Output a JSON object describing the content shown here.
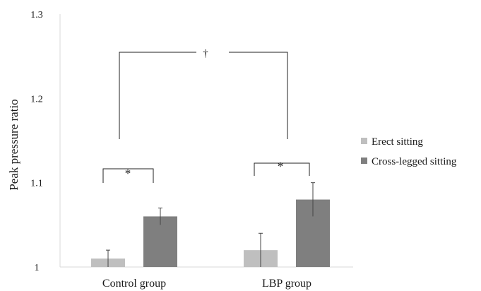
{
  "chart_data": {
    "type": "bar",
    "ylabel": "Peak pressure ratio",
    "ylim": [
      1,
      1.3
    ],
    "yticks": [
      "1",
      "1.1",
      "1.2",
      "1.3"
    ],
    "categories": [
      "Control group",
      "LBP group"
    ],
    "series": [
      {
        "name": "Erect sitting",
        "values": [
          1.01,
          1.02
        ],
        "errors": [
          0.01,
          0.02
        ],
        "color": "#bfbfbf"
      },
      {
        "name": "Cross-legged sitting",
        "values": [
          1.06,
          1.08
        ],
        "errors": [
          0.01,
          0.02
        ],
        "color": "#7f7f7f"
      }
    ],
    "grid": false,
    "legend_position": "right",
    "annotations": [
      {
        "symbol": "*",
        "type": "bracket",
        "between": "Erect sitting vs Cross-legged sitting",
        "group": "Control group"
      },
      {
        "symbol": "*",
        "type": "bracket",
        "between": "Erect sitting vs Cross-legged sitting",
        "group": "LBP group"
      },
      {
        "symbol": "†",
        "type": "bracket",
        "between": "Control group vs LBP group"
      }
    ]
  }
}
